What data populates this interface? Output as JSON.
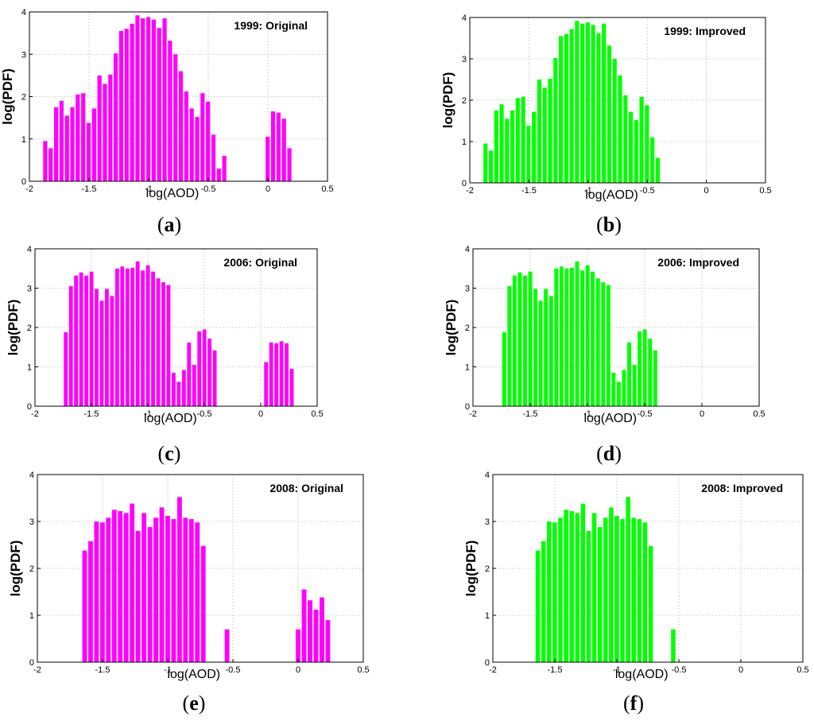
{
  "figure": {
    "xlabel": "log(AOD)",
    "ylabel": "log(PDF)",
    "colors": {
      "original": "#ff00ff",
      "improved": "#00ff00",
      "grid": "#c8c8c8",
      "axis": "#000000"
    }
  },
  "chart_data": [
    {
      "id": "a",
      "type": "bar",
      "series_type": "original",
      "title": "1999: Original",
      "caption": "a",
      "xlabel": "log(AOD)",
      "ylabel": "log(PDF)",
      "xlim": [
        -2,
        0.5
      ],
      "ylim": [
        0,
        4
      ],
      "xticks": [
        "-2",
        "-1.5",
        "-1",
        "-0.5",
        "0",
        "0.5"
      ],
      "xtick_values": [
        -2,
        -1.5,
        -1,
        -0.5,
        0,
        0.5
      ],
      "yticks": [
        "0",
        "1",
        "2",
        "3",
        "4"
      ],
      "ytick_values": [
        0,
        1,
        2,
        3,
        4
      ],
      "bin_start": -1.89,
      "bin_width": 0.0455,
      "values": [
        0.95,
        0.78,
        1.75,
        1.9,
        1.55,
        1.75,
        2.05,
        2.08,
        1.38,
        1.72,
        2.5,
        2.3,
        2.52,
        3.02,
        3.55,
        3.6,
        3.72,
        3.92,
        3.85,
        3.88,
        3.82,
        3.62,
        3.85,
        3.32,
        3.0,
        2.6,
        2.12,
        1.72,
        1.52,
        2.08,
        1.88,
        1.1,
        0.3,
        0.6,
        0,
        0,
        0,
        0,
        0,
        0,
        0,
        1.05,
        1.65,
        1.62,
        1.48,
        0.78
      ]
    },
    {
      "id": "b",
      "type": "bar",
      "series_type": "improved",
      "title": "1999: Improved",
      "caption": "b",
      "xlabel": "log(AOD)",
      "ylabel": "log(PDF)",
      "xlim": [
        -2,
        0.5
      ],
      "ylim": [
        0,
        4
      ],
      "xticks": [
        "-2",
        "-1.5",
        "-1",
        "-0.5",
        "0",
        "0.5"
      ],
      "xtick_values": [
        -2,
        -1.5,
        -1,
        -0.5,
        0,
        0.5
      ],
      "yticks": [
        "0",
        "1",
        "2",
        "3",
        "4"
      ],
      "ytick_values": [
        0,
        1,
        2,
        3,
        4
      ],
      "bin_start": -1.89,
      "bin_width": 0.0455,
      "values": [
        0.95,
        0.78,
        1.75,
        1.9,
        1.55,
        1.75,
        2.05,
        2.08,
        1.38,
        1.72,
        2.5,
        2.3,
        2.52,
        3.02,
        3.55,
        3.6,
        3.72,
        3.92,
        3.85,
        3.88,
        3.82,
        3.62,
        3.85,
        3.32,
        3.0,
        2.6,
        2.12,
        1.72,
        1.52,
        2.08,
        1.88,
        1.1,
        0.6
      ]
    },
    {
      "id": "c",
      "type": "bar",
      "series_type": "original",
      "title": "2006: Original",
      "caption": "c",
      "xlabel": "log(AOD)",
      "ylabel": "log(PDF)",
      "xlim": [
        -2,
        0.5
      ],
      "ylim": [
        0,
        4
      ],
      "xticks": [
        "-2",
        "-1.5",
        "-1",
        "-0.5",
        "0",
        "0.5"
      ],
      "xtick_values": [
        -2,
        -1.5,
        -1,
        -0.5,
        0,
        0.5
      ],
      "yticks": [
        "0",
        "1",
        "2",
        "3",
        "4"
      ],
      "ytick_values": [
        0,
        1,
        2,
        3,
        4
      ],
      "bin_start": -1.75,
      "bin_width": 0.0455,
      "values": [
        1.88,
        3.05,
        3.32,
        3.4,
        3.32,
        3.42,
        2.98,
        2.68,
        2.98,
        2.8,
        3.5,
        3.55,
        3.5,
        3.52,
        3.68,
        3.45,
        3.58,
        3.42,
        3.25,
        3.15,
        3.08,
        0.85,
        0.62,
        0.92,
        1.62,
        1.05,
        1.9,
        1.95,
        1.72,
        1.42,
        0,
        0,
        0,
        0,
        0,
        0,
        0,
        0,
        0,
        1.12,
        1.62,
        1.6,
        1.65,
        1.6,
        0.95
      ]
    },
    {
      "id": "d",
      "type": "bar",
      "series_type": "improved",
      "title": "2006: Improved",
      "caption": "d",
      "xlabel": "log(AOD)",
      "ylabel": "log(PDF)",
      "xlim": [
        -2,
        0.5
      ],
      "ylim": [
        0,
        4
      ],
      "xticks": [
        "-2",
        "-1.5",
        "-1",
        "-0.5",
        "0",
        "0.5"
      ],
      "xtick_values": [
        -2,
        -1.5,
        -1,
        -0.5,
        0,
        0.5
      ],
      "yticks": [
        "0",
        "1",
        "2",
        "3",
        "4"
      ],
      "ytick_values": [
        0,
        1,
        2,
        3,
        4
      ],
      "bin_start": -1.75,
      "bin_width": 0.0455,
      "values": [
        1.88,
        3.05,
        3.32,
        3.4,
        3.32,
        3.42,
        2.98,
        2.68,
        2.98,
        2.8,
        3.5,
        3.55,
        3.5,
        3.52,
        3.68,
        3.45,
        3.58,
        3.42,
        3.25,
        3.15,
        3.08,
        0.85,
        0.62,
        0.92,
        1.62,
        1.05,
        1.9,
        1.95,
        1.72,
        1.42
      ]
    },
    {
      "id": "e",
      "type": "bar",
      "series_type": "original",
      "title": "2008: Original",
      "caption": "e",
      "xlabel": "log(AOD)",
      "ylabel": "log(PDF)",
      "xlim": [
        -2,
        0.5
      ],
      "ylim": [
        0,
        4
      ],
      "xticks": [
        "-2",
        "-1.5",
        "-1",
        "-0.5",
        "0",
        "0.5"
      ],
      "xtick_values": [
        -2,
        -1.5,
        -1,
        -0.5,
        0,
        0.5
      ],
      "yticks": [
        "0",
        "1",
        "2",
        "3",
        "4"
      ],
      "ytick_values": [
        0,
        1,
        2,
        3,
        4
      ],
      "bin_start": -1.66,
      "bin_width": 0.0455,
      "values": [
        2.38,
        2.58,
        3.0,
        2.98,
        3.08,
        3.25,
        3.22,
        3.18,
        3.38,
        2.8,
        3.18,
        2.88,
        3.08,
        3.3,
        3.12,
        3.05,
        3.52,
        3.08,
        3.05,
        2.98,
        2.48,
        0,
        0,
        0,
        0.7,
        0,
        0,
        0,
        0,
        0,
        0,
        0,
        0,
        0,
        0,
        0,
        0.7,
        1.55,
        1.32,
        1.12,
        1.38,
        0.9
      ]
    },
    {
      "id": "f",
      "type": "bar",
      "series_type": "improved",
      "title": "2008: Improved",
      "caption": "f",
      "xlabel": "log(AOD)",
      "ylabel": "log(PDF)",
      "xlim": [
        -2,
        0.5
      ],
      "ylim": [
        0,
        4
      ],
      "xticks": [
        "-2",
        "-1.5",
        "-1",
        "-0.5",
        "0",
        "0.5"
      ],
      "xtick_values": [
        -2,
        -1.5,
        -1,
        -0.5,
        0,
        0.5
      ],
      "yticks": [
        "0",
        "1",
        "2",
        "3",
        "4"
      ],
      "ytick_values": [
        0,
        1,
        2,
        3,
        4
      ],
      "bin_start": -1.66,
      "bin_width": 0.0455,
      "values": [
        2.38,
        2.58,
        3.0,
        2.98,
        3.08,
        3.25,
        3.22,
        3.18,
        3.38,
        2.8,
        3.18,
        2.88,
        3.08,
        3.3,
        3.12,
        3.05,
        3.52,
        3.08,
        3.05,
        2.98,
        2.48,
        0,
        0,
        0,
        0.7
      ]
    }
  ]
}
